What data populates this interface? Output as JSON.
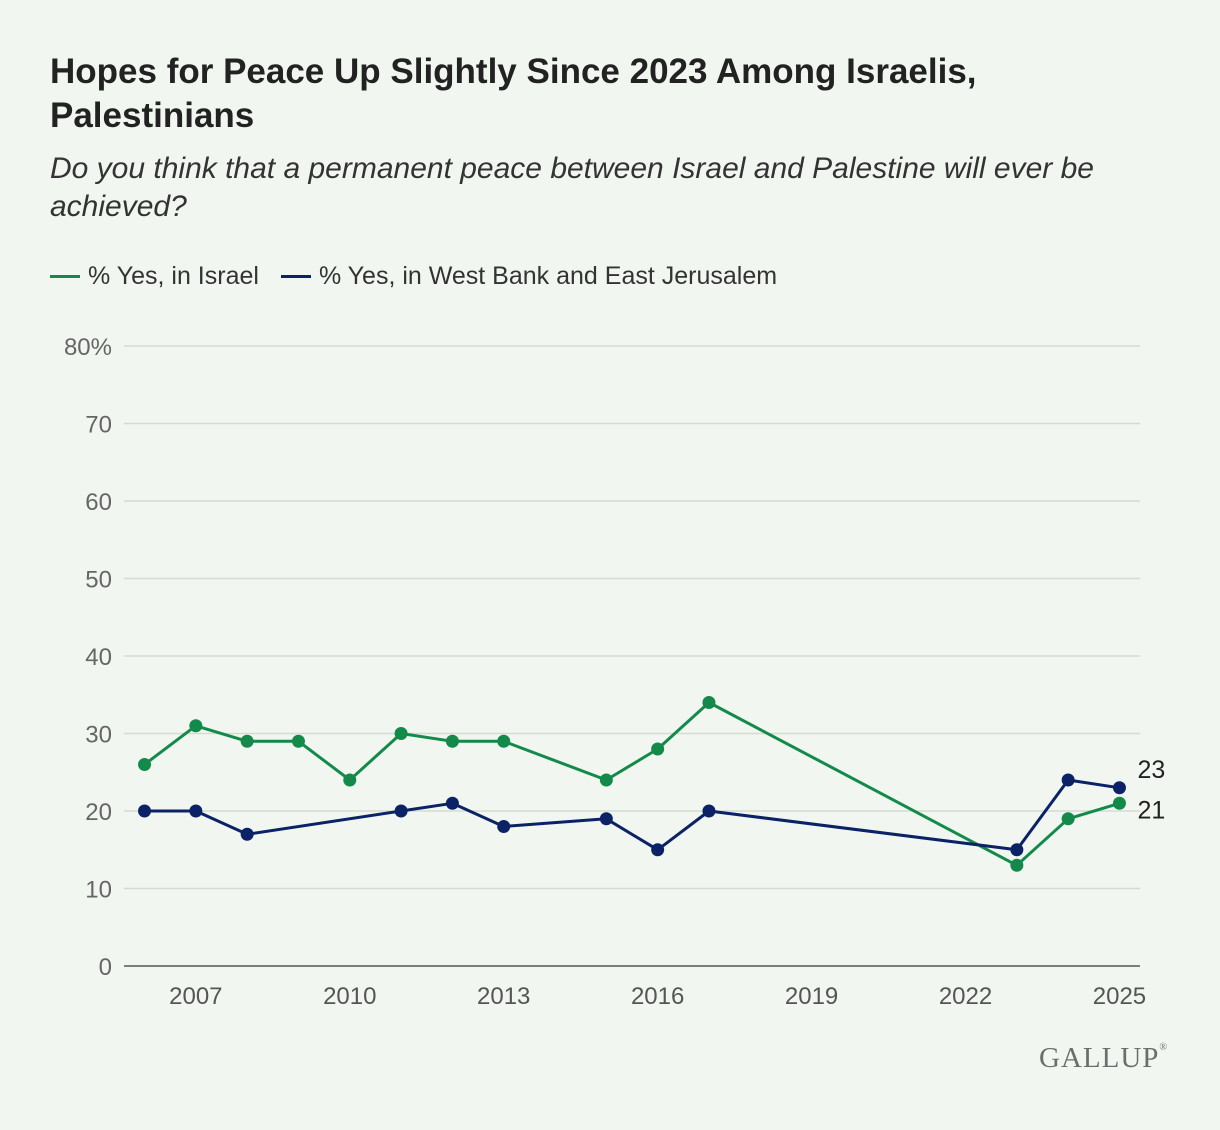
{
  "header": {
    "title": "Hopes for Peace Up Slightly Since 2023 Among Israelis, Palestinians",
    "subtitle": "Do you think that a permanent peace between Israel and Palestine will ever be achieved?"
  },
  "brand": {
    "name": "GALLUP",
    "mark": "®"
  },
  "chart_data": {
    "type": "line",
    "xlim": [
      2005.6,
      2025.4
    ],
    "ylim": [
      0,
      80
    ],
    "yticks": [
      0,
      10,
      20,
      30,
      40,
      50,
      60,
      70,
      80
    ],
    "ytick_labels": [
      "0",
      "10",
      "20",
      "30",
      "40",
      "50",
      "60",
      "70",
      "80%"
    ],
    "xticks": [
      2007,
      2010,
      2013,
      2016,
      2019,
      2022,
      2025
    ],
    "xtick_labels": [
      "2007",
      "2010",
      "2013",
      "2016",
      "2019",
      "2022",
      "2025"
    ],
    "grid": true,
    "legend_position": "top-left",
    "series": [
      {
        "name": "% Yes, in Israel",
        "color": "#138a4a",
        "points": [
          [
            2006,
            26
          ],
          [
            2007,
            31
          ],
          [
            2008,
            29
          ],
          [
            2009,
            29
          ],
          [
            2010,
            24
          ],
          [
            2011,
            30
          ],
          [
            2012,
            29
          ],
          [
            2013,
            29
          ],
          [
            2015,
            24
          ],
          [
            2016,
            28
          ],
          [
            2017,
            34
          ],
          [
            2023,
            13
          ],
          [
            2024,
            19
          ],
          [
            2025,
            21
          ]
        ],
        "end_label": "21"
      },
      {
        "name": "% Yes, in West Bank and East Jerusalem",
        "color": "#0b2266",
        "points": [
          [
            2006,
            20
          ],
          [
            2007,
            20
          ],
          [
            2008,
            17
          ],
          [
            2011,
            20
          ],
          [
            2012,
            21
          ],
          [
            2013,
            18
          ],
          [
            2015,
            19
          ],
          [
            2016,
            15
          ],
          [
            2017,
            20
          ],
          [
            2023,
            15
          ],
          [
            2024,
            24
          ],
          [
            2025,
            23
          ]
        ],
        "end_label": "23"
      }
    ]
  }
}
